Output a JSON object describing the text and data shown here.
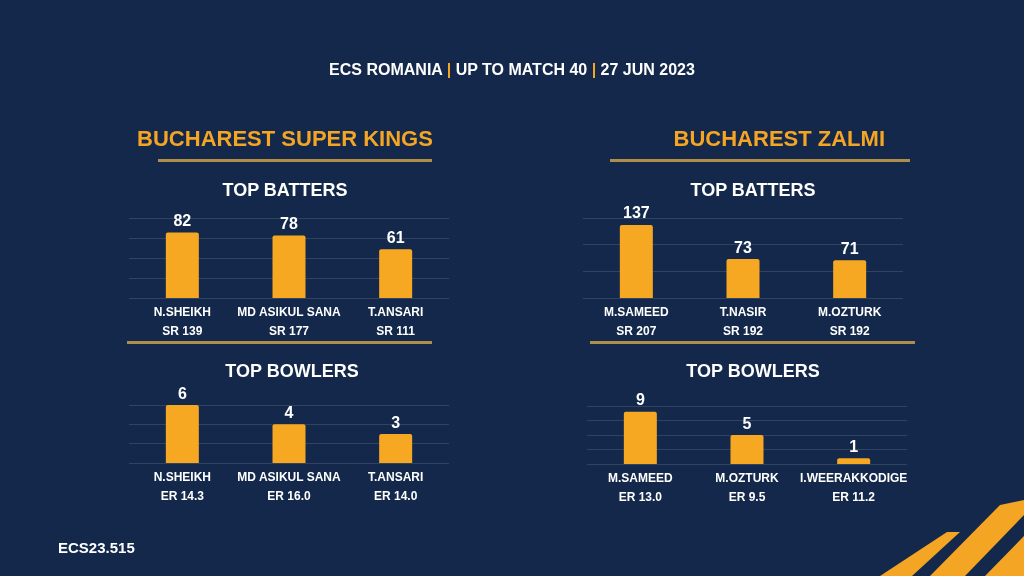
{
  "chart_data": [
    {
      "type": "bar",
      "title": "BUCHAREST SUPER KINGS",
      "subtitle": "TOP BATTERS",
      "categories": [
        "N.SHEIKH",
        "MD ASIKUL SANA",
        "T.ANSARI"
      ],
      "values": [
        82,
        78,
        61
      ],
      "color": "#f7a823",
      "data_labels": true,
      "ylim": [
        0,
        100
      ],
      "yticks": [
        {
          "value": 0,
          "label": null
        },
        {
          "value": 25,
          "label": null
        },
        {
          "value": 50,
          "label": null
        },
        {
          "value": 75,
          "label": null
        },
        {
          "value": 100,
          "label": null
        }
      ],
      "grid": "y",
      "tick_labels": "x",
      "annotations": [
        "ECS ROMANIA | UP TO MATCH 40 | 27 JUN 2023",
        "SR 139",
        "SR 177",
        "SR 111"
      ]
    },
    {
      "type": "bar",
      "title": "BUCHAREST ZALMI",
      "subtitle": "TOP BATTERS",
      "categories": [
        "M.SAMEED",
        "T.NASIR",
        "M.OZTURK"
      ],
      "values": [
        137,
        73,
        71
      ],
      "color": "#f7a823",
      "data_labels": true,
      "ylim": [
        0,
        150
      ],
      "yticks": [
        {
          "value": 0,
          "label": null
        },
        {
          "value": 50,
          "label": null
        },
        {
          "value": 100,
          "label": null
        },
        {
          "value": 150,
          "label": null
        }
      ],
      "grid": "y",
      "tick_labels": "x",
      "annotations": [
        "SR 207",
        "SR 192",
        "SR 192"
      ]
    },
    {
      "type": "bar",
      "title": "TOP BOWLERS",
      "categories": [
        "N.SHEIKH",
        "MD ASIKUL SANA",
        "T.ANSARI"
      ],
      "values": [
        6,
        4,
        3
      ],
      "color": "#f7a823",
      "data_labels": true,
      "ylim": [
        0,
        6
      ],
      "yticks": [
        {
          "value": 0,
          "label": null
        },
        {
          "value": 2,
          "label": null
        },
        {
          "value": 4,
          "label": null
        },
        {
          "value": 6,
          "label": null
        }
      ],
      "grid": "y",
      "tick_labels": "x",
      "annotations": [
        "ER 14.3",
        "ER 16.0",
        "ER 14.0",
        "ECS23.515"
      ]
    },
    {
      "type": "bar",
      "title": "TOP BOWLERS",
      "categories": [
        "M.SAMEED",
        "M.OZTURK",
        "I.WEERAKKODIGE"
      ],
      "values": [
        9,
        5,
        1
      ],
      "color": "#f7a823",
      "data_labels": true,
      "ylim": [
        0,
        10
      ],
      "yticks": [
        {
          "value": 0,
          "label": null
        },
        {
          "value": 2.5,
          "label": null
        },
        {
          "value": 5,
          "label": null
        },
        {
          "value": 7.5,
          "label": null
        },
        {
          "value": 10,
          "label": null
        }
      ],
      "grid": "y",
      "tick_labels": "x",
      "annotations": [
        "ER 13.0",
        "ER 9.5",
        "ER 11.2"
      ]
    }
  ]
}
